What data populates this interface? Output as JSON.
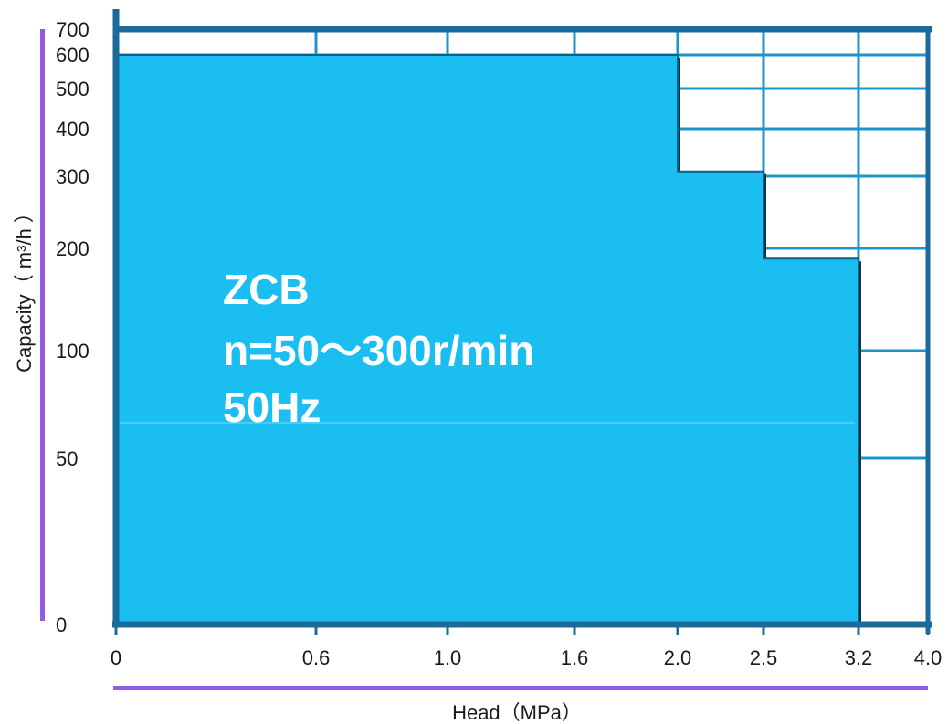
{
  "chart_data": {
    "type": "area",
    "title": "",
    "xlabel": "Head（MPa）",
    "ylabel": "Capacity（ m³/h ）",
    "x_ticks": [
      "0",
      "0.6",
      "1.0",
      "1.6",
      "2.0",
      "2.5",
      "3.2",
      "4.0"
    ],
    "y_ticks": [
      "0",
      "50",
      "100",
      "200",
      "300",
      "400",
      "500",
      "600",
      "700"
    ],
    "grid": true,
    "region": {
      "name": "ZCB",
      "fill": "#1ABEF0",
      "points": [
        {
          "head": 0,
          "capacity": 600
        },
        {
          "head": 2.0,
          "capacity": 600
        },
        {
          "head": 2.0,
          "capacity": 310
        },
        {
          "head": 2.5,
          "capacity": 310
        },
        {
          "head": 2.5,
          "capacity": 190
        },
        {
          "head": 3.2,
          "capacity": 190
        },
        {
          "head": 3.2,
          "capacity": 0
        },
        {
          "head": 0,
          "capacity": 0
        }
      ]
    },
    "annotations": [
      "ZCB",
      "n=50～300r/min",
      "50Hz"
    ]
  },
  "colors": {
    "fill": "#1ABEF0",
    "grid": "#1C95CC",
    "frame": "#1A6A9A",
    "axis_bar": "#8E5CE8"
  }
}
